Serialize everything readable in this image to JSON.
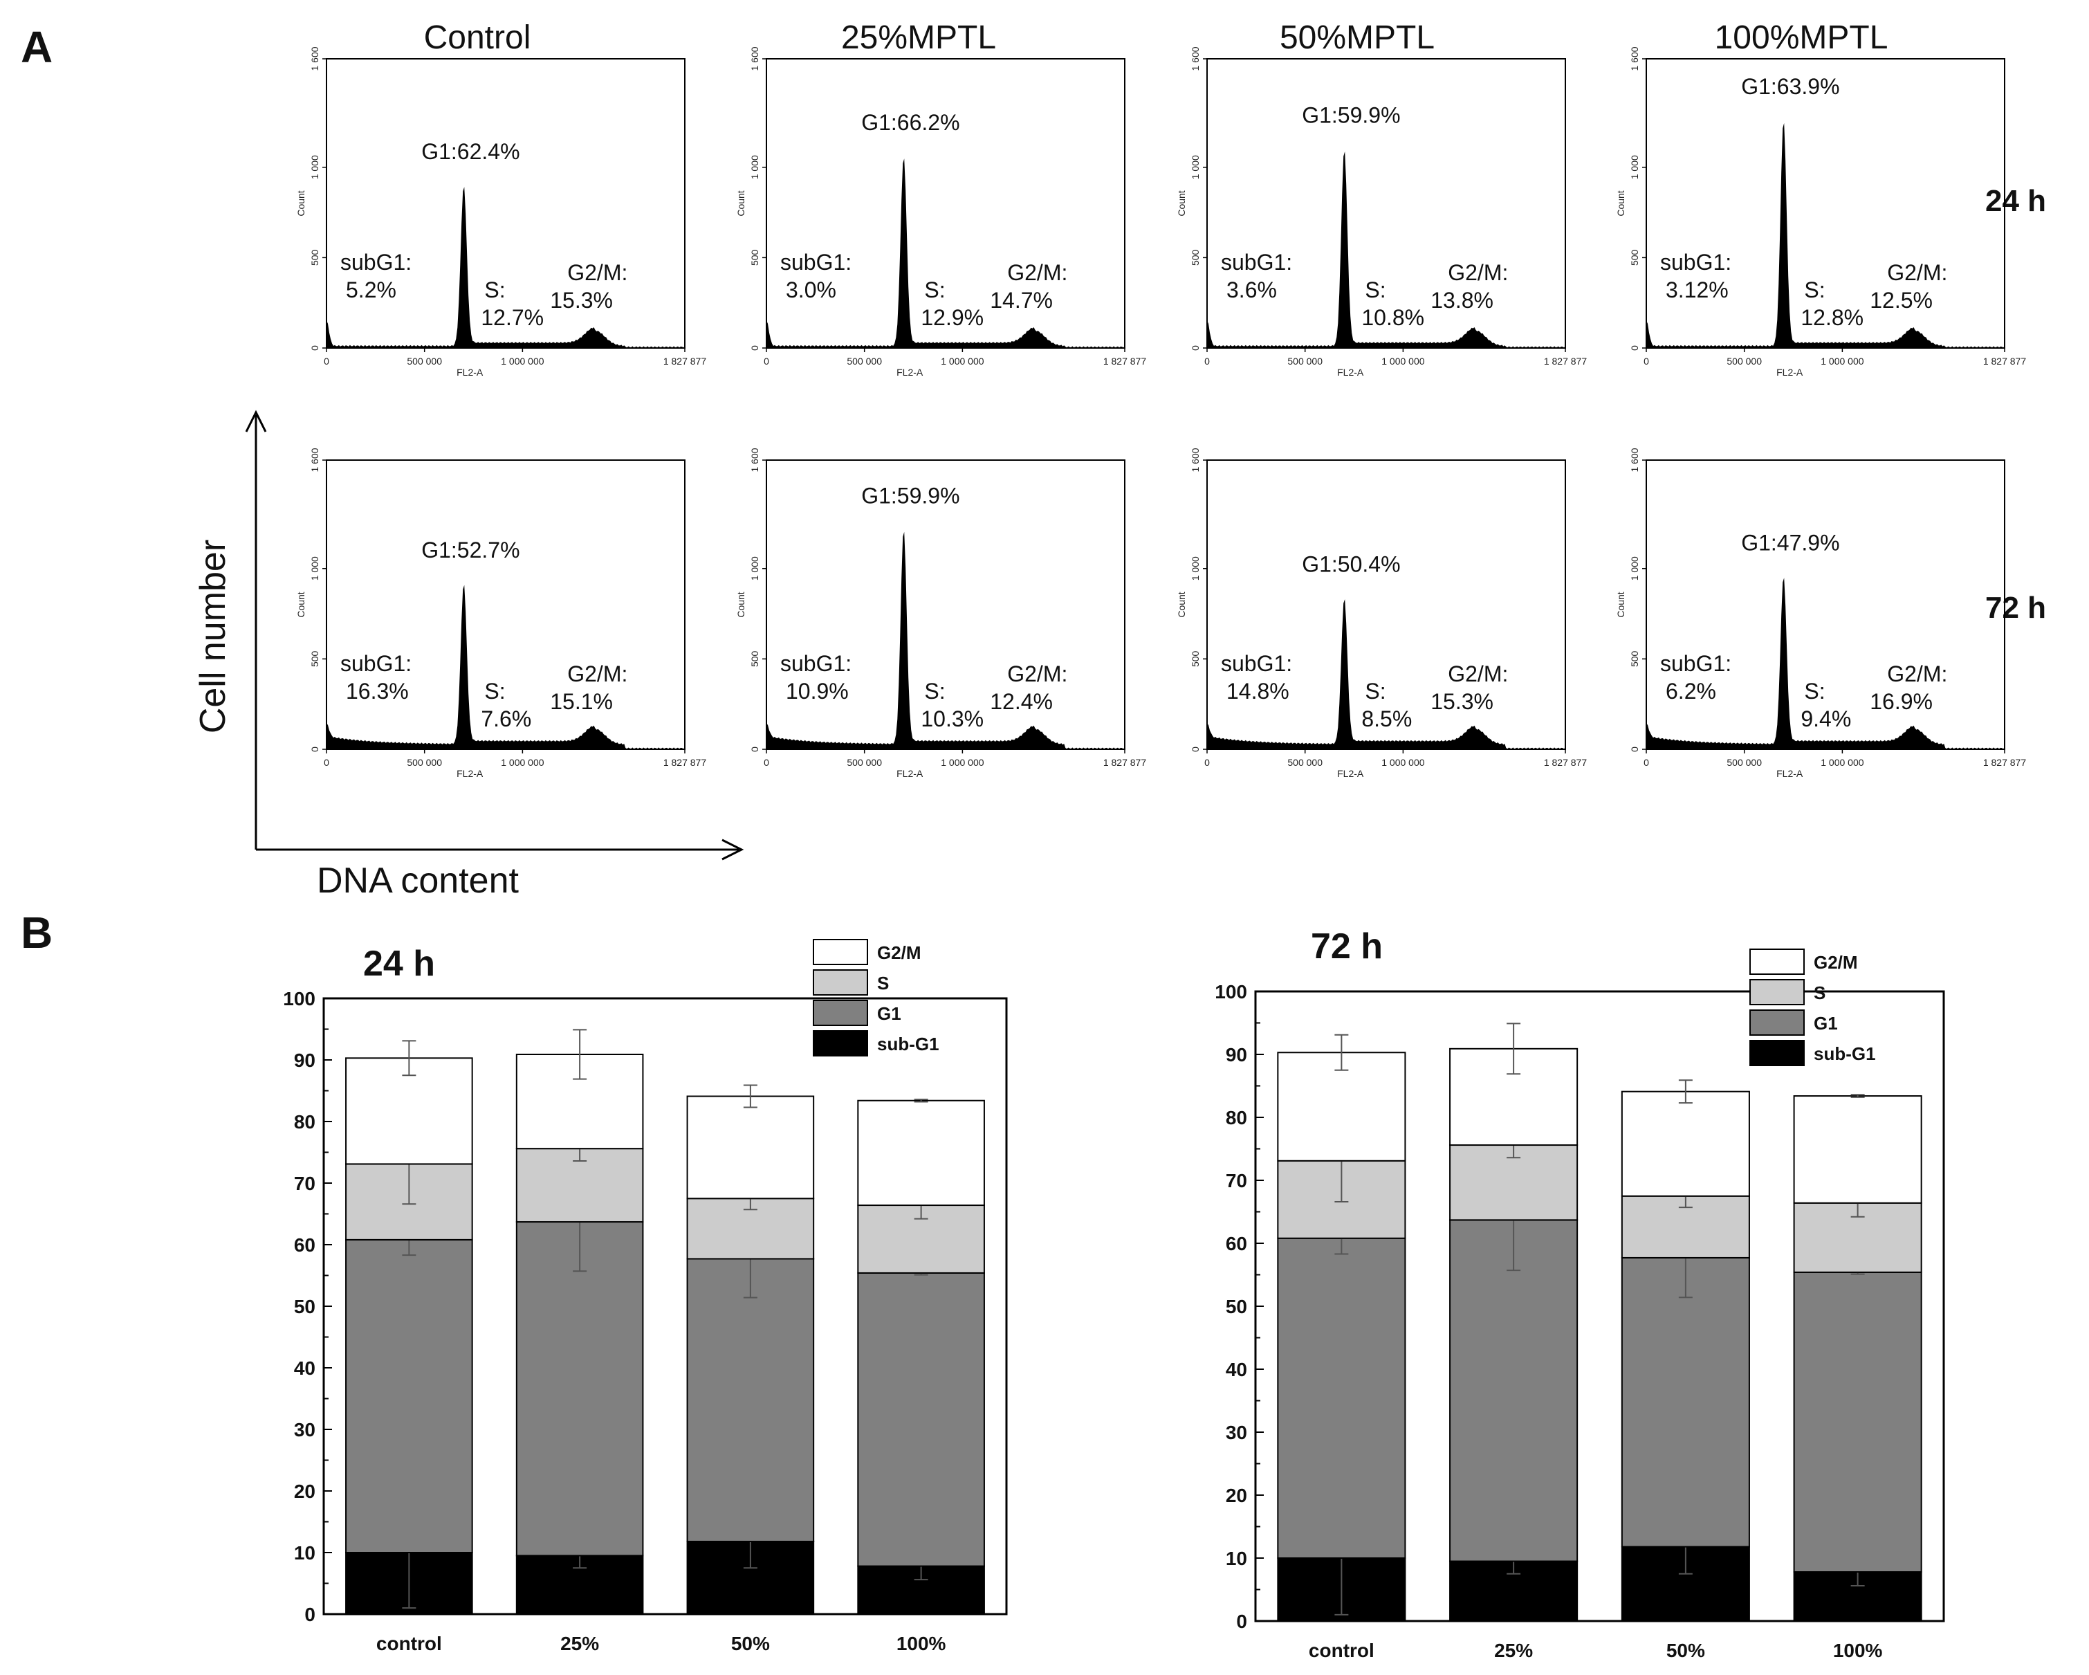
{
  "panel_a_label": "A",
  "panel_b_label": "B",
  "axis_cell_number": "Cell number",
  "axis_dna_content": "DNA content",
  "chart_data": [
    {
      "type": "histogram-grid",
      "columns": [
        "Control",
        "25%MPTL",
        "50%MPTL",
        "100%MPTL"
      ],
      "rows": [
        "24 h",
        "72 h"
      ],
      "x_tick_labels": [
        "0",
        "500 000",
        "1 000 000",
        "1 827 877"
      ],
      "y_tick_labels": [
        "0",
        "500",
        "1 000",
        "1 600"
      ],
      "xlabel": "FL2-A",
      "ylabel": "Count",
      "xlim": [
        0,
        1827877
      ],
      "ylim": [
        0,
        1600
      ],
      "panels": [
        {
          "row": "24 h",
          "column": "Control",
          "peak": 880,
          "g1": "G1:62.4%",
          "subg1": [
            "subG1:",
            "5.2%"
          ],
          "s": [
            "S:",
            "12.7%"
          ],
          "g2m": [
            "G2/M:",
            "15.3%"
          ]
        },
        {
          "row": "24 h",
          "column": "25%MPTL",
          "peak": 1040,
          "g1": "G1:66.2%",
          "subg1": [
            "subG1:",
            "3.0%"
          ],
          "s": [
            "S:",
            "12.9%"
          ],
          "g2m": [
            "G2/M:",
            "14.7%"
          ]
        },
        {
          "row": "24 h",
          "column": "50%MPTL",
          "peak": 1080,
          "g1": "G1:59.9%",
          "subg1": [
            "subG1:",
            "3.6%"
          ],
          "s": [
            "S:",
            "10.8%"
          ],
          "g2m": [
            "G2/M:",
            "13.8%"
          ]
        },
        {
          "row": "24 h",
          "column": "100%MPTL",
          "peak": 1240,
          "g1": "G1:63.9%",
          "subg1": [
            "subG1:",
            "3.12%"
          ],
          "s": [
            "S:",
            "12.8%"
          ],
          "g2m": [
            "G2/M:",
            "12.5%"
          ]
        },
        {
          "row": "72 h",
          "column": "Control",
          "peak": 880,
          "g1": "G1:52.7%",
          "subg1": [
            "subG1:",
            "16.3%"
          ],
          "s": [
            "S:",
            "7.6%"
          ],
          "g2m": [
            "G2/M:",
            "15.1%"
          ]
        },
        {
          "row": "72 h",
          "column": "25%MPTL",
          "peak": 1180,
          "g1": "G1:59.9%",
          "subg1": [
            "subG1:",
            "10.9%"
          ],
          "s": [
            "S:",
            "10.3%"
          ],
          "g2m": [
            "G2/M:",
            "12.4%"
          ]
        },
        {
          "row": "72 h",
          "column": "50%MPTL",
          "peak": 800,
          "g1": "G1:50.4%",
          "subg1": [
            "subG1:",
            "14.8%"
          ],
          "s": [
            "S:",
            "8.5%"
          ],
          "g2m": [
            "G2/M:",
            "15.3%"
          ]
        },
        {
          "row": "72 h",
          "column": "100%MPTL",
          "peak": 920,
          "g1": "G1:47.9%",
          "subg1": [
            "subG1:",
            "6.2%"
          ],
          "s": [
            "S:",
            "9.4%"
          ],
          "g2m": [
            "G2/M:",
            "16.9%"
          ]
        }
      ]
    },
    {
      "type": "bar",
      "stacked": true,
      "title": "24 h",
      "categories": [
        "control",
        "25%",
        "50%",
        "100%"
      ],
      "ylim": [
        0,
        100
      ],
      "yticks": [
        0,
        10,
        20,
        30,
        40,
        50,
        60,
        70,
        80,
        90,
        100
      ],
      "legend_position": "top-right",
      "series": [
        {
          "name": "sub-G1",
          "color": "#000000",
          "values": [
            10,
            9.5,
            11.8,
            7.8
          ],
          "errors": [
            9,
            2,
            4.3,
            2.2
          ]
        },
        {
          "name": "G1",
          "color": "#808080",
          "values": [
            50.8,
            54.2,
            45.9,
            47.6
          ],
          "errors": [
            2.5,
            8,
            6.3,
            0.3
          ]
        },
        {
          "name": "S",
          "color": "#cccccc",
          "values": [
            12.3,
            11.9,
            9.8,
            11
          ],
          "errors": [
            6.5,
            2,
            1.8,
            2.2
          ]
        },
        {
          "name": "G2/M",
          "color": "#ffffff",
          "values": [
            17.2,
            15.3,
            16.6,
            17
          ],
          "errors": [
            2.8,
            4,
            1.8,
            0.2
          ]
        }
      ]
    },
    {
      "type": "bar",
      "stacked": true,
      "title": "72 h",
      "categories": [
        "control",
        "25%",
        "50%",
        "100%"
      ],
      "ylim": [
        0,
        100
      ],
      "yticks": [
        0,
        10,
        20,
        30,
        40,
        50,
        60,
        70,
        80,
        90,
        100
      ],
      "legend_position": "top-right",
      "series": [
        {
          "name": "sub-G1",
          "color": "#000000",
          "values": [
            10,
            9.5,
            11.8,
            7.8
          ],
          "errors": [
            9,
            2,
            4.3,
            2.2
          ]
        },
        {
          "name": "G1",
          "color": "#808080",
          "values": [
            50.8,
            54.2,
            45.9,
            47.6
          ],
          "errors": [
            2.5,
            8,
            6.3,
            0.3
          ]
        },
        {
          "name": "S",
          "color": "#cccccc",
          "values": [
            12.3,
            11.9,
            9.8,
            11
          ],
          "errors": [
            6.5,
            2,
            1.8,
            2.2
          ]
        },
        {
          "name": "G2/M",
          "color": "#ffffff",
          "values": [
            17.2,
            15.3,
            16.6,
            17
          ],
          "errors": [
            2.8,
            4,
            1.8,
            0.2
          ]
        }
      ]
    }
  ]
}
